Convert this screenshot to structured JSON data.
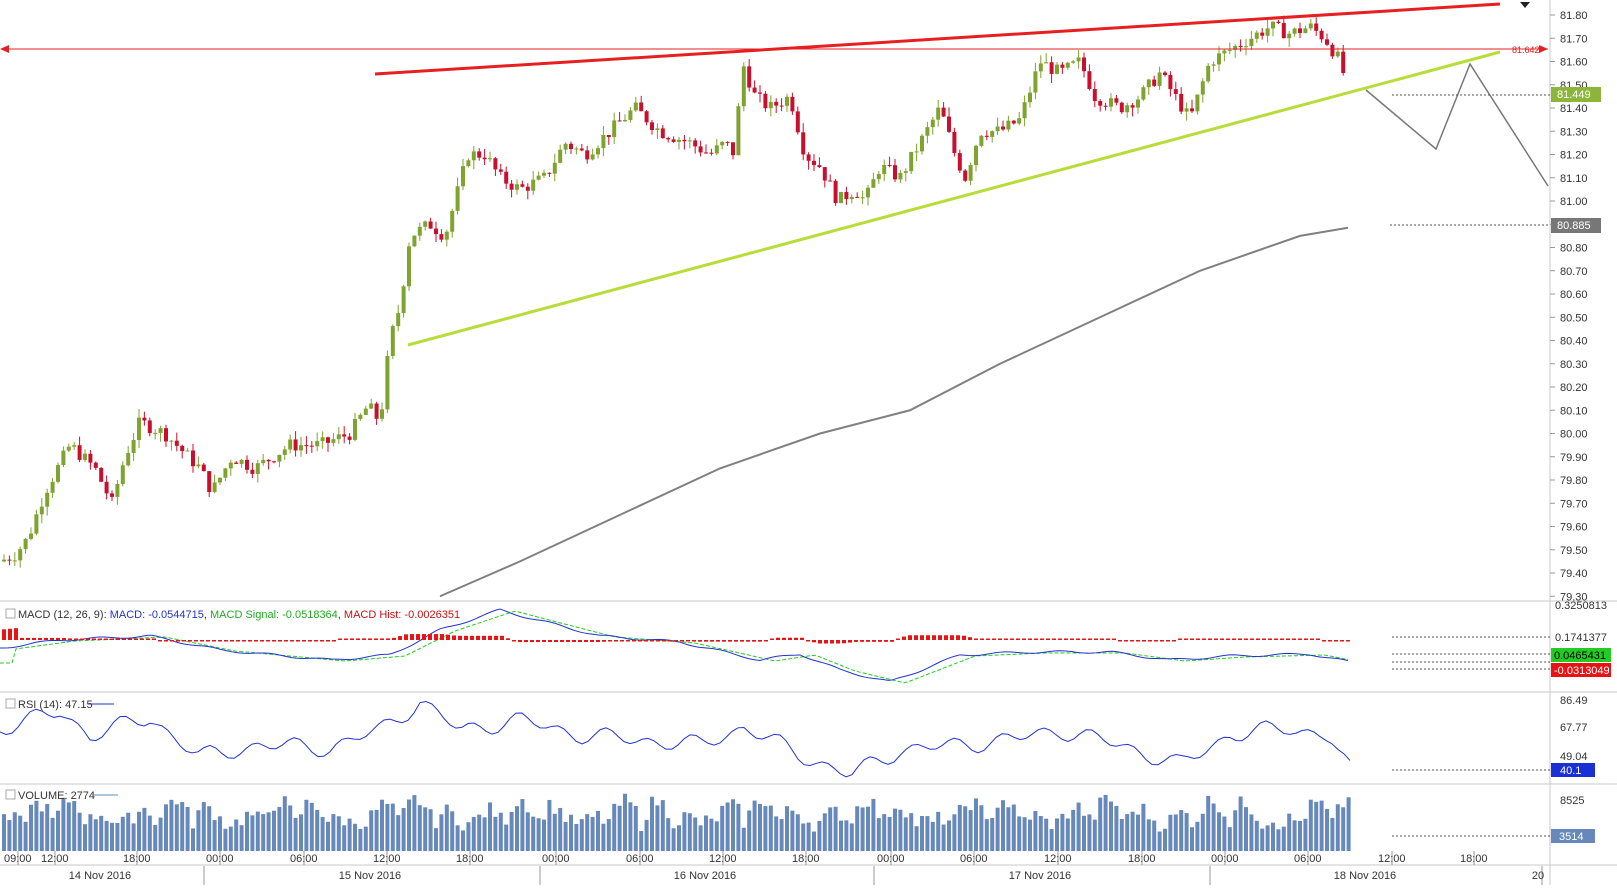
{
  "chart_data": {
    "type": "candlestick",
    "price_axis": {
      "ticks": [
        "81.80",
        "81.70",
        "81.60",
        "81.50",
        "81.40",
        "81.30",
        "81.20",
        "81.10",
        "81.00",
        "80.90",
        "80.80",
        "80.70",
        "80.60",
        "80.50",
        "80.40",
        "80.30",
        "80.20",
        "80.10",
        "80.00",
        "79.90",
        "79.80",
        "79.70",
        "79.60",
        "79.50",
        "79.40",
        "79.30"
      ],
      "ylim": [
        79.3,
        81.85
      ]
    },
    "time_axis": {
      "hour_ticks": [
        "09:00",
        "12:00",
        "18:00",
        "00:00",
        "06:00",
        "12:00",
        "18:00",
        "00:00",
        "06:00",
        "12:00",
        "18:00",
        "00:00",
        "06:00",
        "12:00",
        "18:00",
        "00:00",
        "06:00",
        "12:00",
        "18:00"
      ],
      "date_ticks": [
        "14 Nov 2016",
        "15 Nov 2016",
        "16 Nov 2016",
        "17 Nov 2016",
        "18 Nov 2016",
        "20"
      ]
    },
    "resistance_level": {
      "label": "81.642",
      "value": 81.642
    },
    "current_price": {
      "label": "81.449",
      "value": 81.449,
      "color": "#8db53a"
    },
    "sma": {
      "label": "80.885",
      "value": 80.885,
      "color": "#777777"
    },
    "colors": {
      "up": "#7fa32f",
      "down": "#c8102e",
      "support": "#b8dc3a",
      "resistance": "#e62020",
      "sma": "#808080"
    },
    "macd": {
      "title": "MACD (12, 26, 9):",
      "macd_label": "MACD: -0.0544715",
      "signal_label": "MACD Signal: -0.0518364",
      "hist_label": "MACD Hist: -0.0026351",
      "axis_ticks": [
        "0.3250813",
        "0.1741377"
      ],
      "value_boxes": [
        "0.0465431",
        "-0.0313049"
      ]
    },
    "rsi": {
      "title": "RSI (14): 47.15",
      "axis_ticks": [
        "86.49",
        "67.77",
        "49.04"
      ],
      "value_box": "40.1"
    },
    "volume": {
      "title": "VOLUME: 2774",
      "axis_ticks": [
        "8525"
      ],
      "value_box": "3514"
    }
  }
}
